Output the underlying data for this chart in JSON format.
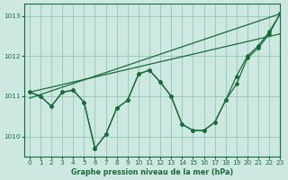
{
  "title": "Graphe pression niveau de la mer (hPa)",
  "bg_color": "#cce8e0",
  "plot_bg_color": "#cce8e0",
  "grid_color": "#99ccbb",
  "line_color": "#1a6b3a",
  "xlim": [
    -0.5,
    23
  ],
  "ylim": [
    1009.5,
    1013.3
  ],
  "yticks": [
    1010,
    1011,
    1012,
    1013
  ],
  "xticks": [
    0,
    1,
    2,
    3,
    4,
    5,
    6,
    7,
    8,
    9,
    10,
    11,
    12,
    13,
    14,
    15,
    16,
    17,
    18,
    19,
    20,
    21,
    22,
    23
  ],
  "trend_line1": [
    1010.95,
    1013.05
  ],
  "trend_line2": [
    1011.1,
    1012.55
  ],
  "curve1": [
    1011.1,
    1011.0,
    1010.75,
    1011.1,
    1011.15,
    1010.85,
    1009.7,
    1010.05,
    1010.7,
    1010.9,
    1011.55,
    1011.65,
    1011.35,
    1011.0,
    1010.3,
    1010.15,
    1010.15,
    1010.35,
    1010.9,
    1011.5,
    1012.0,
    1012.25,
    1012.6,
    1013.05
  ],
  "curve2": [
    1011.1,
    1011.0,
    1010.75,
    1011.1,
    1011.15,
    1010.85,
    1009.7,
    1010.05,
    1010.7,
    1010.9,
    1011.55,
    1011.65,
    1011.35,
    1011.0,
    1010.3,
    1010.15,
    1010.15,
    1010.35,
    1010.9,
    1011.3,
    1011.95,
    1012.2,
    1012.55,
    1013.05
  ]
}
